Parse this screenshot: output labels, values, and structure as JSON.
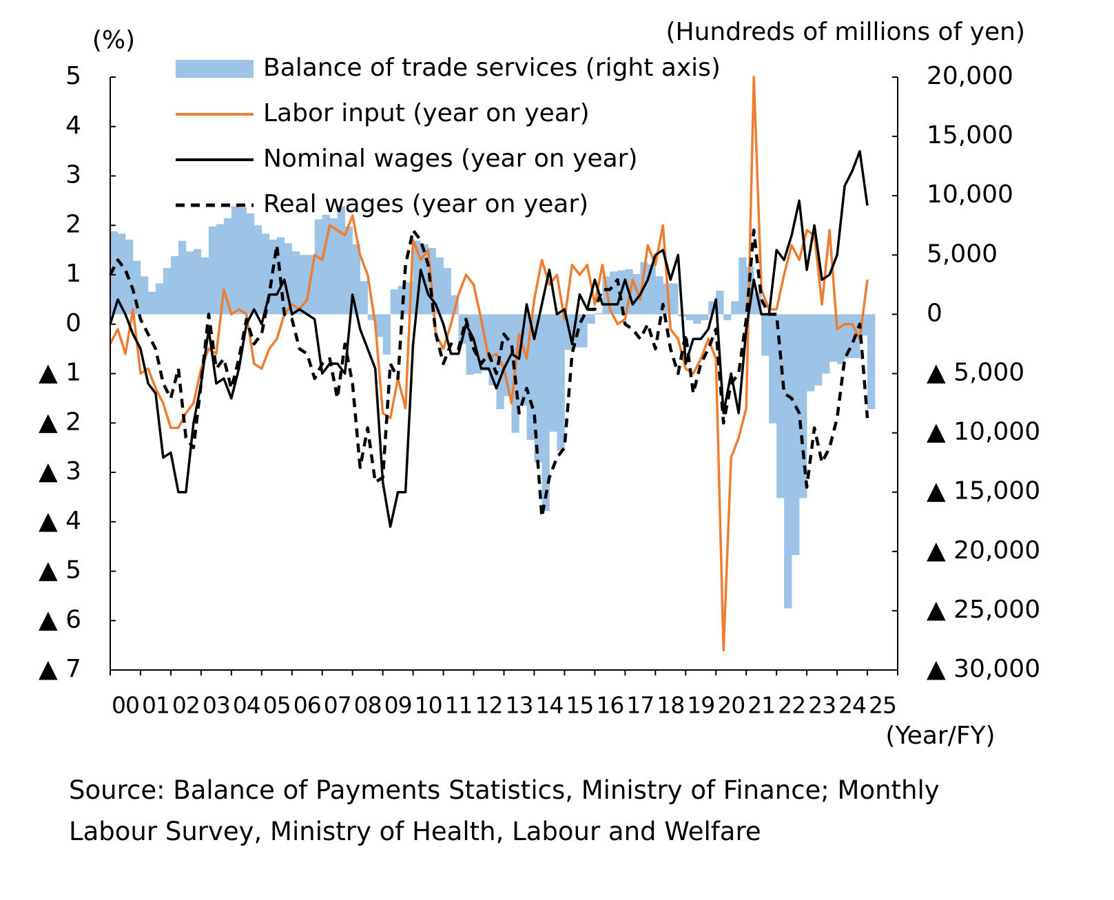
{
  "chart_data": {
    "type": "combo",
    "y_label": "(%)",
    "y2_label": "(Hundreds of millions of yen)",
    "x_label": "(Year/FY)",
    "source": "Source: Balance of Payments Statistics, Ministry of Finance; Monthly Labour Survey, Ministry of Health, Labour and Welfare",
    "legend": "upper left",
    "categories": [
      "00",
      null,
      null,
      null,
      "01",
      null,
      null,
      null,
      "02",
      null,
      null,
      null,
      "03",
      null,
      null,
      null,
      "04",
      null,
      null,
      null,
      "05",
      null,
      null,
      null,
      "06",
      null,
      null,
      null,
      "07",
      null,
      null,
      null,
      "08",
      null,
      null,
      null,
      "09",
      null,
      null,
      null,
      "10",
      null,
      null,
      null,
      "11",
      null,
      null,
      null,
      "12",
      null,
      null,
      null,
      "13",
      null,
      null,
      null,
      "14",
      null,
      null,
      null,
      "15",
      null,
      null,
      null,
      "16",
      null,
      null,
      null,
      "17",
      null,
      null,
      null,
      "18",
      null,
      null,
      null,
      "19",
      null,
      null,
      null,
      "20",
      null,
      null,
      null,
      "21",
      null,
      null,
      null,
      "22",
      null,
      null,
      null,
      "23",
      null,
      null,
      null,
      "24",
      null,
      null,
      null,
      "25"
    ],
    "ylim": [
      -7,
      5
    ],
    "yticks": [
      5,
      4,
      3,
      2,
      1,
      0,
      {
        "value": -1,
        "label": "▲ 1"
      },
      {
        "value": -2,
        "label": "▲ 2"
      },
      {
        "value": -3,
        "label": "▲ 3"
      },
      {
        "value": -4,
        "label": "▲ 4"
      },
      {
        "value": -5,
        "label": "▲ 5"
      },
      {
        "value": -6,
        "label": "▲ 6"
      },
      {
        "value": -7,
        "label": "▲ 7"
      }
    ],
    "y2lim": [
      -30000,
      20000
    ],
    "y2ticks": [
      {
        "value": 20000,
        "label": "20,000"
      },
      {
        "value": 15000,
        "label": "15,000"
      },
      {
        "value": 10000,
        "label": "10,000"
      },
      {
        "value": 5000,
        "label": "5,000"
      },
      0,
      {
        "value": -5000,
        "label": "▲ 5,000"
      },
      {
        "value": -10000,
        "label": "▲ 10,000"
      },
      {
        "value": -15000,
        "label": "▲ 15,000"
      },
      {
        "value": -20000,
        "label": "▲ 20,000"
      },
      {
        "value": -25000,
        "label": "▲ 25,000"
      },
      {
        "value": -30000,
        "label": "▲ 30,000"
      }
    ],
    "series": [
      {
        "name": "Balance of trade services (right axis)",
        "type": "bar",
        "axis": "y2",
        "color": "#9dc3e6",
        "values": [
          7000,
          6800,
          6300,
          4500,
          3200,
          1900,
          2600,
          3900,
          4900,
          6200,
          5300,
          5500,
          4800,
          7400,
          7600,
          8100,
          9100,
          9000,
          8500,
          7500,
          6800,
          6300,
          6500,
          6000,
          5300,
          5000,
          5000,
          8000,
          8400,
          8100,
          9100,
          7400,
          5900,
          2800,
          -500,
          -1900,
          -3400,
          2100,
          2400,
          2700,
          6200,
          5900,
          5600,
          4800,
          3900,
          1600,
          -2500,
          -5100,
          -5000,
          -4800,
          -6000,
          -8000,
          -6900,
          -10000,
          -7700,
          -10600,
          -12500,
          -16600,
          -9900,
          -11500,
          -3000,
          -2800,
          -2800,
          -800,
          100,
          3200,
          3600,
          3700,
          3800,
          3400,
          4400,
          4200,
          3200,
          2600,
          2600,
          -200,
          -500,
          -800,
          -500,
          1100,
          2000,
          -500,
          1100,
          4800,
          4000,
          1800,
          -3500,
          -9200,
          -15500,
          -24800,
          -20300,
          -15500,
          -6500,
          -6000,
          -5000,
          -4000,
          -4200,
          -3700,
          -3700,
          -1800,
          -8000
        ]
      },
      {
        "name": "Labor input (year on year)",
        "type": "line",
        "color": "#ed7d31",
        "linestyle": "solid",
        "values": [
          -0.4,
          -0.1,
          -0.6,
          0.3,
          -1.0,
          -0.9,
          -1.3,
          -1.6,
          -2.1,
          -2.1,
          -1.8,
          -1.6,
          -0.9,
          -0.5,
          -0.6,
          0.7,
          0.2,
          0.3,
          0.2,
          -0.8,
          -0.9,
          -0.5,
          -0.3,
          0.2,
          0.4,
          0.3,
          0.5,
          1.4,
          1.3,
          2.0,
          1.9,
          1.8,
          2.2,
          1.4,
          1.0,
          0.0,
          -1.8,
          -1.9,
          -1.1,
          -1.7,
          1.7,
          1.3,
          1.5,
          -0.2,
          -0.5,
          0.0,
          0.6,
          1.0,
          0.8,
          0.1,
          -0.7,
          -0.6,
          -0.9,
          -1.6,
          -0.2,
          -0.7,
          0.5,
          1.3,
          0.8,
          1.0,
          0.1,
          1.2,
          1.0,
          1.2,
          0.4,
          1.2,
          0.3,
          0.0,
          0.1,
          0.9,
          0.5,
          1.6,
          1.2,
          2.0,
          -0.1,
          -0.3,
          -0.9,
          -1.0,
          -0.7,
          -0.3,
          -0.7,
          -6.6,
          -2.7,
          -2.3,
          -1.7,
          5.0,
          0.7,
          0.3,
          0.3,
          1.0,
          1.6,
          1.3,
          1.9,
          1.8,
          0.4,
          1.9,
          -0.1,
          0.0,
          0.0,
          -0.3,
          0.9
        ]
      },
      {
        "name": "Nominal wages (year on year)",
        "type": "line",
        "color": "#000000",
        "linestyle": "solid",
        "values": [
          0.0,
          0.5,
          0.2,
          -0.2,
          -0.5,
          -1.2,
          -1.4,
          -2.7,
          -2.6,
          -3.4,
          -3.4,
          -2.0,
          -1.2,
          -0.1,
          -1.2,
          -1.1,
          -1.5,
          -0.9,
          0.0,
          0.3,
          0.0,
          0.6,
          0.6,
          0.9,
          0.2,
          0.3,
          0.2,
          0.1,
          -1.0,
          -0.8,
          -0.8,
          -1.0,
          0.6,
          -0.1,
          -0.5,
          -0.9,
          -3.2,
          -4.1,
          -3.4,
          -3.4,
          -0.4,
          1.1,
          0.6,
          0.4,
          0.0,
          -0.6,
          -0.6,
          0.0,
          -0.3,
          -0.9,
          -0.9,
          -1.3,
          -0.9,
          -0.6,
          -0.7,
          0.4,
          -0.3,
          0.4,
          1.1,
          0.2,
          0.3,
          -0.4,
          0.6,
          0.3,
          0.9,
          0.4,
          0.4,
          0.4,
          0.9,
          0.4,
          0.6,
          0.9,
          1.4,
          1.5,
          0.9,
          1.4,
          -0.8,
          -0.3,
          -0.3,
          -0.1,
          0.5,
          -1.8,
          -1.0,
          -1.8,
          -0.1,
          0.9,
          0.2,
          0.2,
          1.5,
          1.3,
          1.8,
          2.5,
          1.1,
          2.0,
          0.9,
          1.0,
          1.4,
          2.8,
          3.1,
          3.5,
          2.4
        ]
      },
      {
        "name": "Real wages (year on year)",
        "type": "line",
        "color": "#000000",
        "linestyle": "dashed",
        "values": [
          1.0,
          1.3,
          1.1,
          0.7,
          0.1,
          -0.2,
          -0.5,
          -1.2,
          -1.5,
          -0.9,
          -2.3,
          -2.5,
          -1.2,
          0.2,
          -0.9,
          -0.7,
          -1.3,
          -0.7,
          0.1,
          -0.4,
          -0.2,
          0.6,
          1.6,
          0.2,
          0.1,
          -0.5,
          -0.6,
          -1.1,
          -0.8,
          -0.7,
          -1.5,
          -0.4,
          -1.2,
          -2.9,
          -2.1,
          -3.2,
          -3.1,
          -0.8,
          -1.1,
          1.2,
          1.9,
          1.7,
          1.2,
          -0.2,
          -0.8,
          -0.4,
          -0.5,
          0.1,
          -0.5,
          -0.8,
          -0.6,
          -1.0,
          -0.2,
          -0.4,
          -1.8,
          -1.3,
          -1.8,
          -3.9,
          -3.1,
          -2.7,
          -2.5,
          -0.6,
          0.0,
          0.3,
          0.3,
          0.7,
          0.7,
          0.9,
          0.0,
          -0.1,
          -0.3,
          0.0,
          -0.5,
          0.4,
          -0.5,
          -1.0,
          -0.2,
          -1.4,
          -0.8,
          -0.5,
          -0.1,
          -2.0,
          -1.2,
          -1.0,
          0.1,
          1.9,
          0.5,
          0.2,
          0.2,
          -1.4,
          -1.5,
          -1.8,
          -3.3,
          -2.1,
          -2.8,
          -2.5,
          -1.9,
          -0.7,
          -0.4,
          0.0,
          -1.9
        ]
      }
    ]
  }
}
